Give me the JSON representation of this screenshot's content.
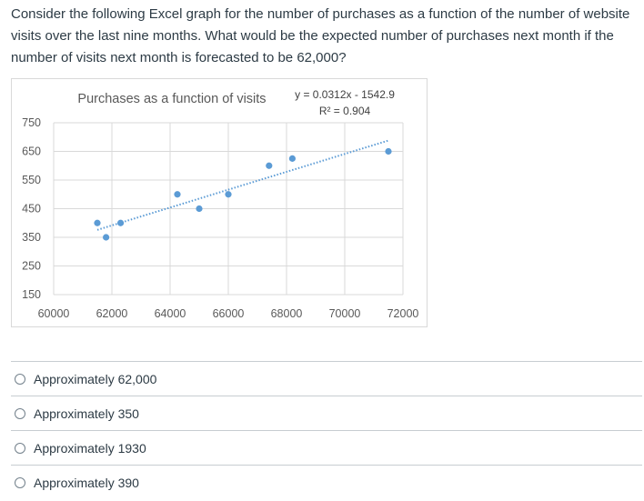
{
  "question": {
    "text": "Consider the following Excel graph for the number of purchases as a function of the number of website visits over the last nine months. What would be the expected number of purchases next month if the number of visits next month is forecasted to be 62,000?"
  },
  "chart_data": {
    "type": "scatter",
    "title": "Purchases as a function of visits",
    "xlabel": "",
    "ylabel": "",
    "xlim": [
      60000,
      72000
    ],
    "ylim": [
      150,
      750
    ],
    "x_ticks": [
      "60000",
      "62000",
      "64000",
      "66000",
      "68000",
      "70000",
      "72000"
    ],
    "y_ticks": [
      "750",
      "650",
      "550",
      "450",
      "350",
      "250",
      "150"
    ],
    "grid": true,
    "colors": {
      "points": "#5b9bd5",
      "trendline": "#5b9bd5",
      "grid": "#d9d9d9"
    },
    "points": [
      {
        "x": 61500,
        "y": 400
      },
      {
        "x": 61800,
        "y": 350
      },
      {
        "x": 62300,
        "y": 400
      },
      {
        "x": 64250,
        "y": 500
      },
      {
        "x": 65000,
        "y": 450
      },
      {
        "x": 66000,
        "y": 500
      },
      {
        "x": 67400,
        "y": 600
      },
      {
        "x": 68200,
        "y": 625
      },
      {
        "x": 71500,
        "y": 650
      }
    ],
    "trendline": {
      "type": "linear",
      "slope": 0.0312,
      "intercept": -1542.9,
      "x_range": [
        61500,
        71500
      ],
      "equation": "y = 0.0312x - 1542.9",
      "r_squared": "R² = 0.904"
    }
  },
  "answers": [
    {
      "label": "Approximately 62,000"
    },
    {
      "label": "Approximately 350"
    },
    {
      "label": "Approximately 1930"
    },
    {
      "label": "Approximately 390"
    }
  ]
}
